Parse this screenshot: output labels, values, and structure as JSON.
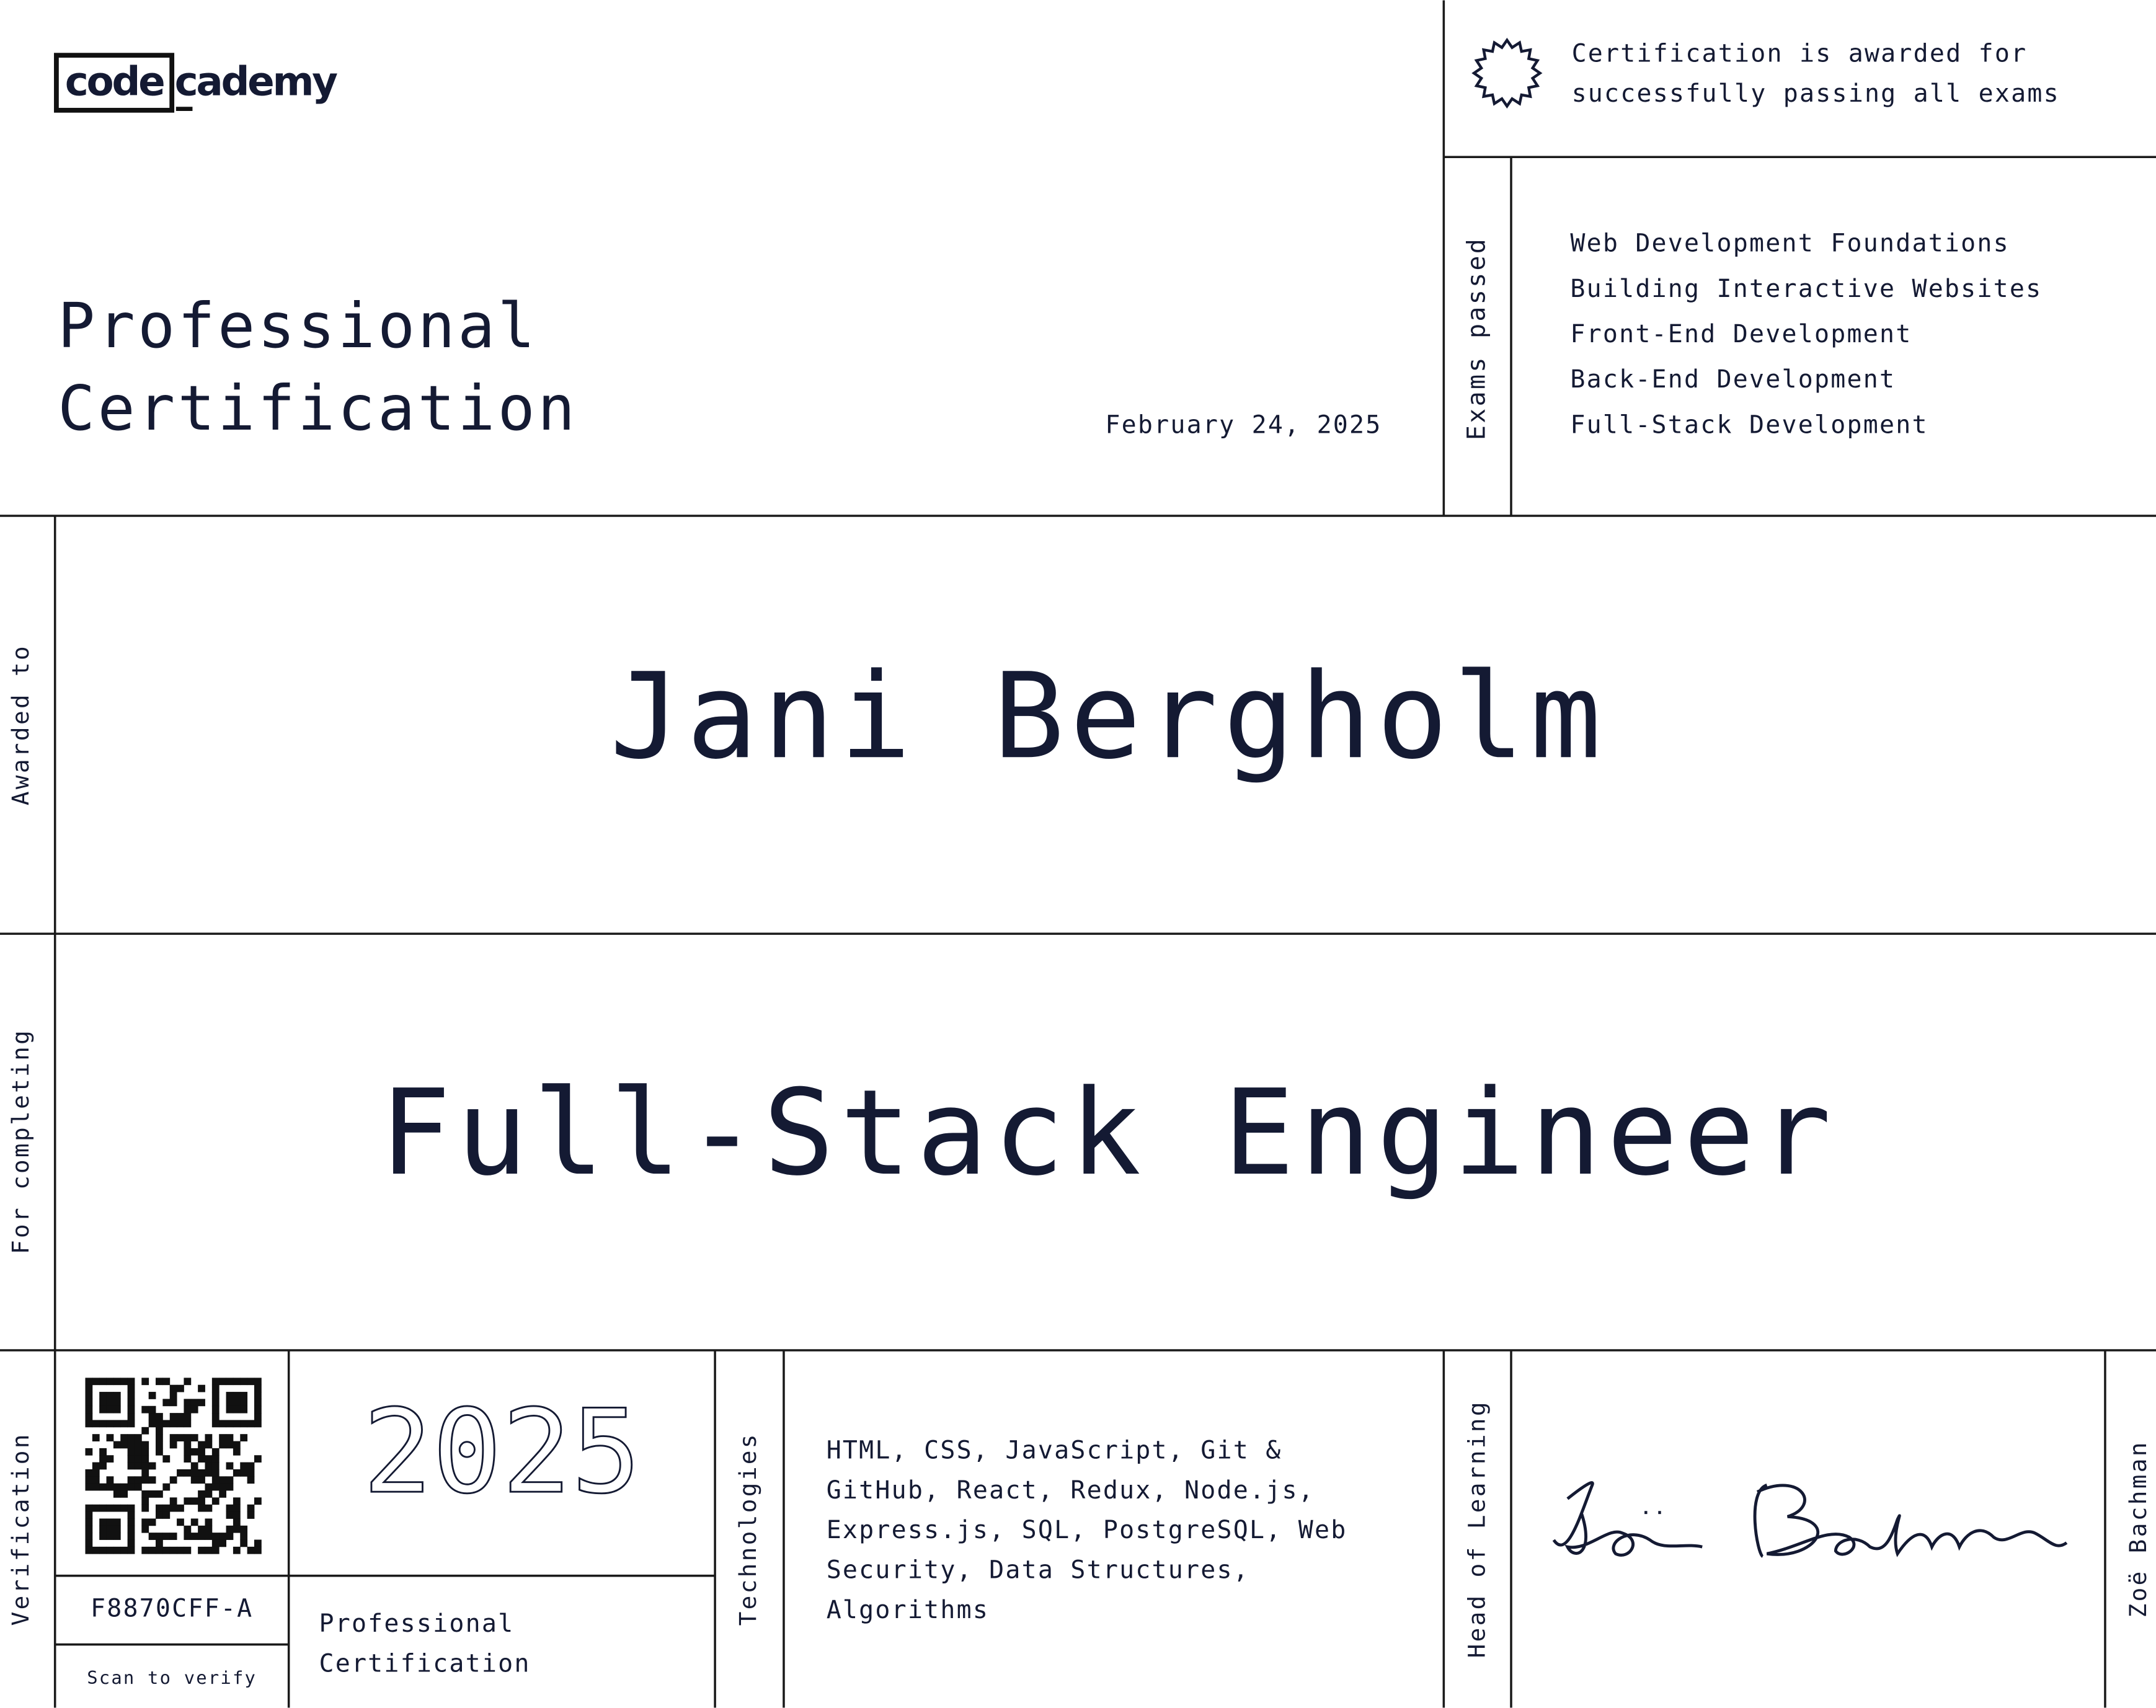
{
  "header": {
    "logo_box": "code",
    "logo_rest": "cademy",
    "title_lines": [
      "Professional",
      "Certification"
    ],
    "date": "February 24, 2025"
  },
  "award_note": [
    "Certification is awarded for",
    "successfully passing all exams"
  ],
  "exams": {
    "label": "Exams passed",
    "items": [
      "Web Development Foundations",
      "Building Interactive Websites",
      "Front-End Development",
      "Back-End Development",
      "Full-Stack Development"
    ]
  },
  "recipient": {
    "label": "Awarded to",
    "name": "Jani Bergholm"
  },
  "program": {
    "label": "For completing",
    "name": "Full-Stack Engineer"
  },
  "verification": {
    "label": "Verification",
    "code": "F8870CFF-A",
    "scan": "Scan to verify"
  },
  "year": "2025",
  "certificate_type": [
    "Professional",
    "Certification"
  ],
  "technologies": {
    "label": "Technologies",
    "lines": [
      "HTML, CSS, JavaScript, Git &",
      "GitHub, React, Redux, Node.js,",
      "Express.js, SQL, PostgreSQL, Web",
      "Security, Data Structures,",
      "Algorithms"
    ]
  },
  "signatory": {
    "label": "Head of Learning",
    "name": "Zoë Bachman"
  }
}
